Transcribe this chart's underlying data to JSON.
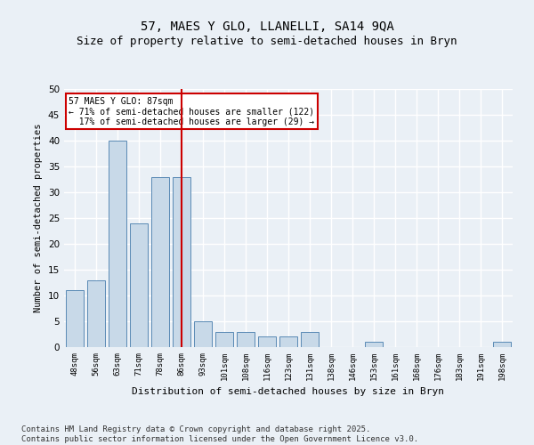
{
  "title": "57, MAES Y GLO, LLANELLI, SA14 9QA",
  "subtitle": "Size of property relative to semi-detached houses in Bryn",
  "xlabel": "Distribution of semi-detached houses by size in Bryn",
  "ylabel": "Number of semi-detached properties",
  "categories": [
    "48sqm",
    "56sqm",
    "63sqm",
    "71sqm",
    "78sqm",
    "86sqm",
    "93sqm",
    "101sqm",
    "108sqm",
    "116sqm",
    "123sqm",
    "131sqm",
    "138sqm",
    "146sqm",
    "153sqm",
    "161sqm",
    "168sqm",
    "176sqm",
    "183sqm",
    "191sqm",
    "198sqm"
  ],
  "values": [
    11,
    13,
    40,
    24,
    33,
    33,
    5,
    3,
    3,
    2,
    2,
    3,
    0,
    0,
    1,
    0,
    0,
    0,
    0,
    0,
    1
  ],
  "bar_color": "#c8d9e8",
  "bar_edge_color": "#5a8ab5",
  "red_line_index": 5,
  "red_line_color": "#cc0000",
  "annotation_text": "57 MAES Y GLO: 87sqm\n← 71% of semi-detached houses are smaller (122)\n  17% of semi-detached houses are larger (29) →",
  "annotation_box_color": "#ffffff",
  "annotation_box_edge": "#cc0000",
  "ylim": [
    0,
    50
  ],
  "yticks": [
    0,
    5,
    10,
    15,
    20,
    25,
    30,
    35,
    40,
    45,
    50
  ],
  "footer": "Contains HM Land Registry data © Crown copyright and database right 2025.\nContains public sector information licensed under the Open Government Licence v3.0.",
  "bg_color": "#eaf0f6",
  "plot_bg_color": "#eaf0f6",
  "grid_color": "#ffffff",
  "title_fontsize": 10,
  "subtitle_fontsize": 9,
  "footer_fontsize": 6.5
}
